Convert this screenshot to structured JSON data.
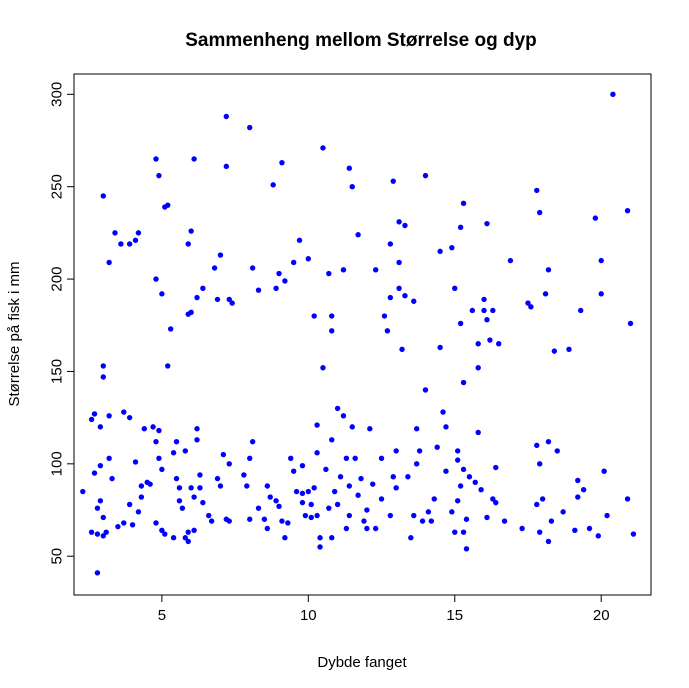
{
  "chart_data": {
    "type": "scatter",
    "title": "Sammenheng mellom Størrelse og dyp",
    "xlabel": "Dybde fanget",
    "ylabel": "Størrelse på fisk i mm",
    "xlim": [
      2.0,
      21.7
    ],
    "ylim": [
      29.0,
      311.0
    ],
    "xticks": [
      5,
      10,
      15,
      20
    ],
    "yticks": [
      50,
      100,
      150,
      200,
      250,
      300
    ],
    "grid": false,
    "legend": "none",
    "point_color": "#0000ff",
    "points": [
      [
        2.3,
        85
      ],
      [
        2.6,
        124
      ],
      [
        2.6,
        63
      ],
      [
        2.7,
        95
      ],
      [
        2.7,
        127
      ],
      [
        2.8,
        76
      ],
      [
        2.8,
        62
      ],
      [
        2.8,
        41
      ],
      [
        2.9,
        120
      ],
      [
        2.9,
        99
      ],
      [
        2.9,
        80
      ],
      [
        3.0,
        153
      ],
      [
        3.0,
        147
      ],
      [
        3.0,
        71
      ],
      [
        3.0,
        61
      ],
      [
        3.1,
        63
      ],
      [
        3.2,
        209
      ],
      [
        3.2,
        126
      ],
      [
        3.2,
        103
      ],
      [
        3.3,
        92
      ],
      [
        3.0,
        245
      ],
      [
        3.4,
        225
      ],
      [
        3.5,
        66
      ],
      [
        3.6,
        219
      ],
      [
        3.7,
        128
      ],
      [
        3.9,
        219
      ],
      [
        3.9,
        125
      ],
      [
        3.9,
        78
      ],
      [
        4.0,
        67
      ],
      [
        4.1,
        221
      ],
      [
        4.1,
        101
      ],
      [
        4.2,
        225
      ],
      [
        4.2,
        74
      ],
      [
        4.3,
        88
      ],
      [
        4.4,
        119
      ],
      [
        4.5,
        90
      ],
      [
        4.6,
        89
      ],
      [
        4.7,
        120
      ],
      [
        4.8,
        200
      ],
      [
        4.8,
        112
      ],
      [
        4.8,
        68
      ],
      [
        4.8,
        265
      ],
      [
        4.9,
        256
      ],
      [
        4.9,
        103
      ],
      [
        5.0,
        97
      ],
      [
        5.0,
        192
      ],
      [
        5.0,
        64
      ],
      [
        5.1,
        239
      ],
      [
        5.1,
        62
      ],
      [
        5.2,
        240
      ],
      [
        5.2,
        153
      ],
      [
        5.3,
        173
      ],
      [
        5.4,
        60
      ],
      [
        5.4,
        106
      ],
      [
        5.5,
        112
      ],
      [
        5.5,
        92
      ],
      [
        5.6,
        87
      ],
      [
        5.7,
        76
      ],
      [
        5.8,
        107
      ],
      [
        5.8,
        60
      ],
      [
        5.9,
        58
      ],
      [
        5.9,
        63
      ],
      [
        5.9,
        181
      ],
      [
        5.9,
        219
      ],
      [
        6.0,
        87
      ],
      [
        6.0,
        182
      ],
      [
        6.0,
        226
      ],
      [
        6.1,
        64
      ],
      [
        6.1,
        82
      ],
      [
        6.1,
        265
      ],
      [
        6.2,
        119
      ],
      [
        6.2,
        113
      ],
      [
        6.2,
        190
      ],
      [
        6.3,
        87
      ],
      [
        6.3,
        94
      ],
      [
        6.4,
        195
      ],
      [
        6.4,
        79
      ],
      [
        6.6,
        72
      ],
      [
        6.8,
        206
      ],
      [
        6.9,
        189
      ],
      [
        6.9,
        92
      ],
      [
        7.0,
        213
      ],
      [
        7.0,
        88
      ],
      [
        7.1,
        105
      ],
      [
        7.2,
        288
      ],
      [
        7.2,
        70
      ],
      [
        7.2,
        261
      ],
      [
        7.3,
        189
      ],
      [
        7.3,
        69
      ],
      [
        7.4,
        187
      ],
      [
        7.8,
        94
      ],
      [
        7.9,
        88
      ],
      [
        8.0,
        282
      ],
      [
        8.0,
        103
      ],
      [
        8.0,
        70
      ],
      [
        8.1,
        112
      ],
      [
        8.1,
        206
      ],
      [
        8.3,
        194
      ],
      [
        8.3,
        76
      ],
      [
        8.5,
        70
      ],
      [
        8.6,
        65
      ],
      [
        8.6,
        88
      ],
      [
        8.8,
        251
      ],
      [
        8.9,
        195
      ],
      [
        8.9,
        80
      ],
      [
        9.0,
        77
      ],
      [
        9.0,
        203
      ],
      [
        9.1,
        263
      ],
      [
        9.1,
        69
      ],
      [
        9.2,
        199
      ],
      [
        9.2,
        60
      ],
      [
        9.3,
        68
      ],
      [
        9.4,
        103
      ],
      [
        9.5,
        209
      ],
      [
        9.6,
        85
      ],
      [
        9.7,
        221
      ],
      [
        9.8,
        99
      ],
      [
        9.8,
        79
      ],
      [
        9.9,
        72
      ],
      [
        10.0,
        85
      ],
      [
        10.0,
        211
      ],
      [
        10.1,
        78
      ],
      [
        10.1,
        71
      ],
      [
        10.2,
        180
      ],
      [
        10.2,
        87
      ],
      [
        10.3,
        72
      ],
      [
        10.3,
        121
      ],
      [
        10.3,
        106
      ],
      [
        10.4,
        55
      ],
      [
        10.4,
        60
      ],
      [
        10.5,
        152
      ],
      [
        10.5,
        271
      ],
      [
        10.6,
        97
      ],
      [
        10.7,
        203
      ],
      [
        10.7,
        76
      ],
      [
        10.8,
        180
      ],
      [
        10.8,
        172
      ],
      [
        10.8,
        113
      ],
      [
        10.9,
        85
      ],
      [
        11.0,
        130
      ],
      [
        11.1,
        93
      ],
      [
        11.2,
        205
      ],
      [
        11.2,
        126
      ],
      [
        11.3,
        65
      ],
      [
        11.3,
        103
      ],
      [
        11.4,
        260
      ],
      [
        11.4,
        88
      ],
      [
        11.4,
        72
      ],
      [
        11.5,
        250
      ],
      [
        11.5,
        120
      ],
      [
        11.6,
        103
      ],
      [
        11.7,
        224
      ],
      [
        11.7,
        83
      ],
      [
        11.8,
        92
      ],
      [
        11.9,
        69
      ],
      [
        12.0,
        75
      ],
      [
        12.1,
        119
      ],
      [
        12.2,
        89
      ],
      [
        12.3,
        205
      ],
      [
        12.3,
        65
      ],
      [
        12.5,
        103
      ],
      [
        12.6,
        180
      ],
      [
        12.7,
        172
      ],
      [
        12.8,
        190
      ],
      [
        12.8,
        219
      ],
      [
        12.8,
        72
      ],
      [
        12.9,
        253
      ],
      [
        12.9,
        93
      ],
      [
        13.0,
        107
      ],
      [
        13.0,
        87
      ],
      [
        13.1,
        231
      ],
      [
        13.1,
        209
      ],
      [
        13.1,
        195
      ],
      [
        13.2,
        162
      ],
      [
        13.3,
        229
      ],
      [
        13.3,
        191
      ],
      [
        13.4,
        93
      ],
      [
        13.5,
        60
      ],
      [
        13.6,
        188
      ],
      [
        13.6,
        72
      ],
      [
        13.8,
        107
      ],
      [
        13.9,
        69
      ],
      [
        14.0,
        256
      ],
      [
        14.0,
        140
      ],
      [
        14.1,
        74
      ],
      [
        14.2,
        69
      ],
      [
        14.3,
        81
      ],
      [
        14.4,
        109
      ],
      [
        14.5,
        215
      ],
      [
        14.5,
        163
      ],
      [
        14.6,
        128
      ],
      [
        14.7,
        120
      ],
      [
        14.9,
        217
      ],
      [
        14.9,
        74
      ],
      [
        15.0,
        63
      ],
      [
        15.0,
        195
      ],
      [
        15.1,
        102
      ],
      [
        15.1,
        80
      ],
      [
        15.1,
        107
      ],
      [
        15.2,
        228
      ],
      [
        15.2,
        176
      ],
      [
        15.2,
        88
      ],
      [
        15.3,
        241
      ],
      [
        15.3,
        144
      ],
      [
        15.3,
        97
      ],
      [
        15.3,
        63
      ],
      [
        15.4,
        54
      ],
      [
        15.4,
        70
      ],
      [
        15.5,
        93
      ],
      [
        15.6,
        183
      ],
      [
        15.7,
        90
      ],
      [
        15.8,
        165
      ],
      [
        15.8,
        152
      ],
      [
        15.9,
        86
      ],
      [
        16.0,
        189
      ],
      [
        16.0,
        183
      ],
      [
        16.1,
        178
      ],
      [
        16.1,
        230
      ],
      [
        16.1,
        71
      ],
      [
        16.2,
        167
      ],
      [
        16.3,
        183
      ],
      [
        16.3,
        81
      ],
      [
        16.5,
        165
      ],
      [
        16.7,
        69
      ],
      [
        16.9,
        210
      ],
      [
        17.3,
        65
      ],
      [
        17.6,
        185
      ],
      [
        17.8,
        248
      ],
      [
        17.9,
        236
      ],
      [
        17.9,
        100
      ],
      [
        18.0,
        81
      ],
      [
        18.1,
        192
      ],
      [
        18.2,
        112
      ],
      [
        18.2,
        58
      ],
      [
        18.3,
        69
      ],
      [
        18.5,
        107
      ],
      [
        18.7,
        74
      ],
      [
        18.9,
        162
      ],
      [
        19.1,
        64
      ],
      [
        19.2,
        91
      ],
      [
        19.3,
        183
      ],
      [
        19.4,
        86
      ],
      [
        19.6,
        65
      ],
      [
        19.8,
        233
      ],
      [
        19.9,
        61
      ],
      [
        20.0,
        210
      ],
      [
        20.0,
        192
      ],
      [
        20.1,
        96
      ],
      [
        20.2,
        72
      ],
      [
        20.4,
        300
      ],
      [
        20.9,
        237
      ],
      [
        20.9,
        81
      ],
      [
        21.0,
        176
      ],
      [
        21.1,
        62
      ],
      [
        17.5,
        187
      ],
      [
        18.4,
        161
      ],
      [
        17.8,
        110
      ],
      [
        17.8,
        78
      ],
      [
        18.2,
        205
      ],
      [
        16.4,
        79
      ],
      [
        14.7,
        96
      ],
      [
        13.7,
        119
      ],
      [
        12.5,
        81
      ],
      [
        11.0,
        78
      ],
      [
        10.8,
        60
      ],
      [
        9.5,
        96
      ],
      [
        8.7,
        82
      ],
      [
        7.3,
        100
      ],
      [
        6.7,
        69
      ],
      [
        5.6,
        80
      ],
      [
        4.3,
        82
      ],
      [
        3.7,
        68
      ],
      [
        4.9,
        118
      ],
      [
        12.0,
        65
      ],
      [
        13.7,
        100
      ],
      [
        15.8,
        117
      ],
      [
        16.4,
        98
      ],
      [
        17.9,
        63
      ],
      [
        19.2,
        82
      ],
      [
        9.8,
        84
      ]
    ]
  }
}
